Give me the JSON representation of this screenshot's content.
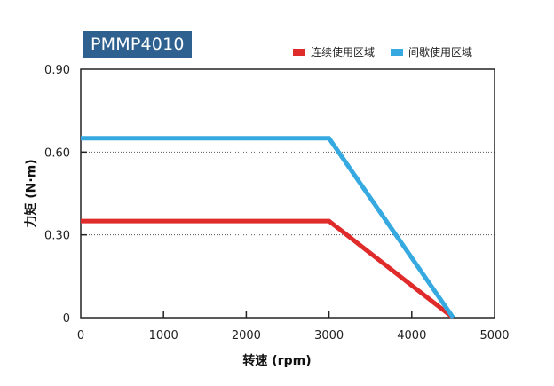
{
  "chart_data": {
    "type": "line",
    "title": "PMMP4010",
    "xlabel": "转速 (rpm)",
    "ylabel": "力矩 (N·m)",
    "xlim": [
      0,
      5000
    ],
    "ylim": [
      0,
      0.9
    ],
    "x_ticks": [
      "0",
      "1000",
      "2000",
      "3000",
      "4000",
      "5000"
    ],
    "y_ticks": [
      "0",
      "0.30",
      "0.60",
      "0.90"
    ],
    "grid": "dotted horizontal",
    "legend_position": "top-right",
    "series": [
      {
        "name": "连续使用区域",
        "color": "#e02b2b",
        "x": [
          0,
          3000,
          4500
        ],
        "y": [
          0.35,
          0.35,
          0
        ]
      },
      {
        "name": "间歇使用区域",
        "color": "#35a9e0",
        "x": [
          0,
          3000,
          4500
        ],
        "y": [
          0.65,
          0.65,
          0
        ]
      }
    ]
  }
}
